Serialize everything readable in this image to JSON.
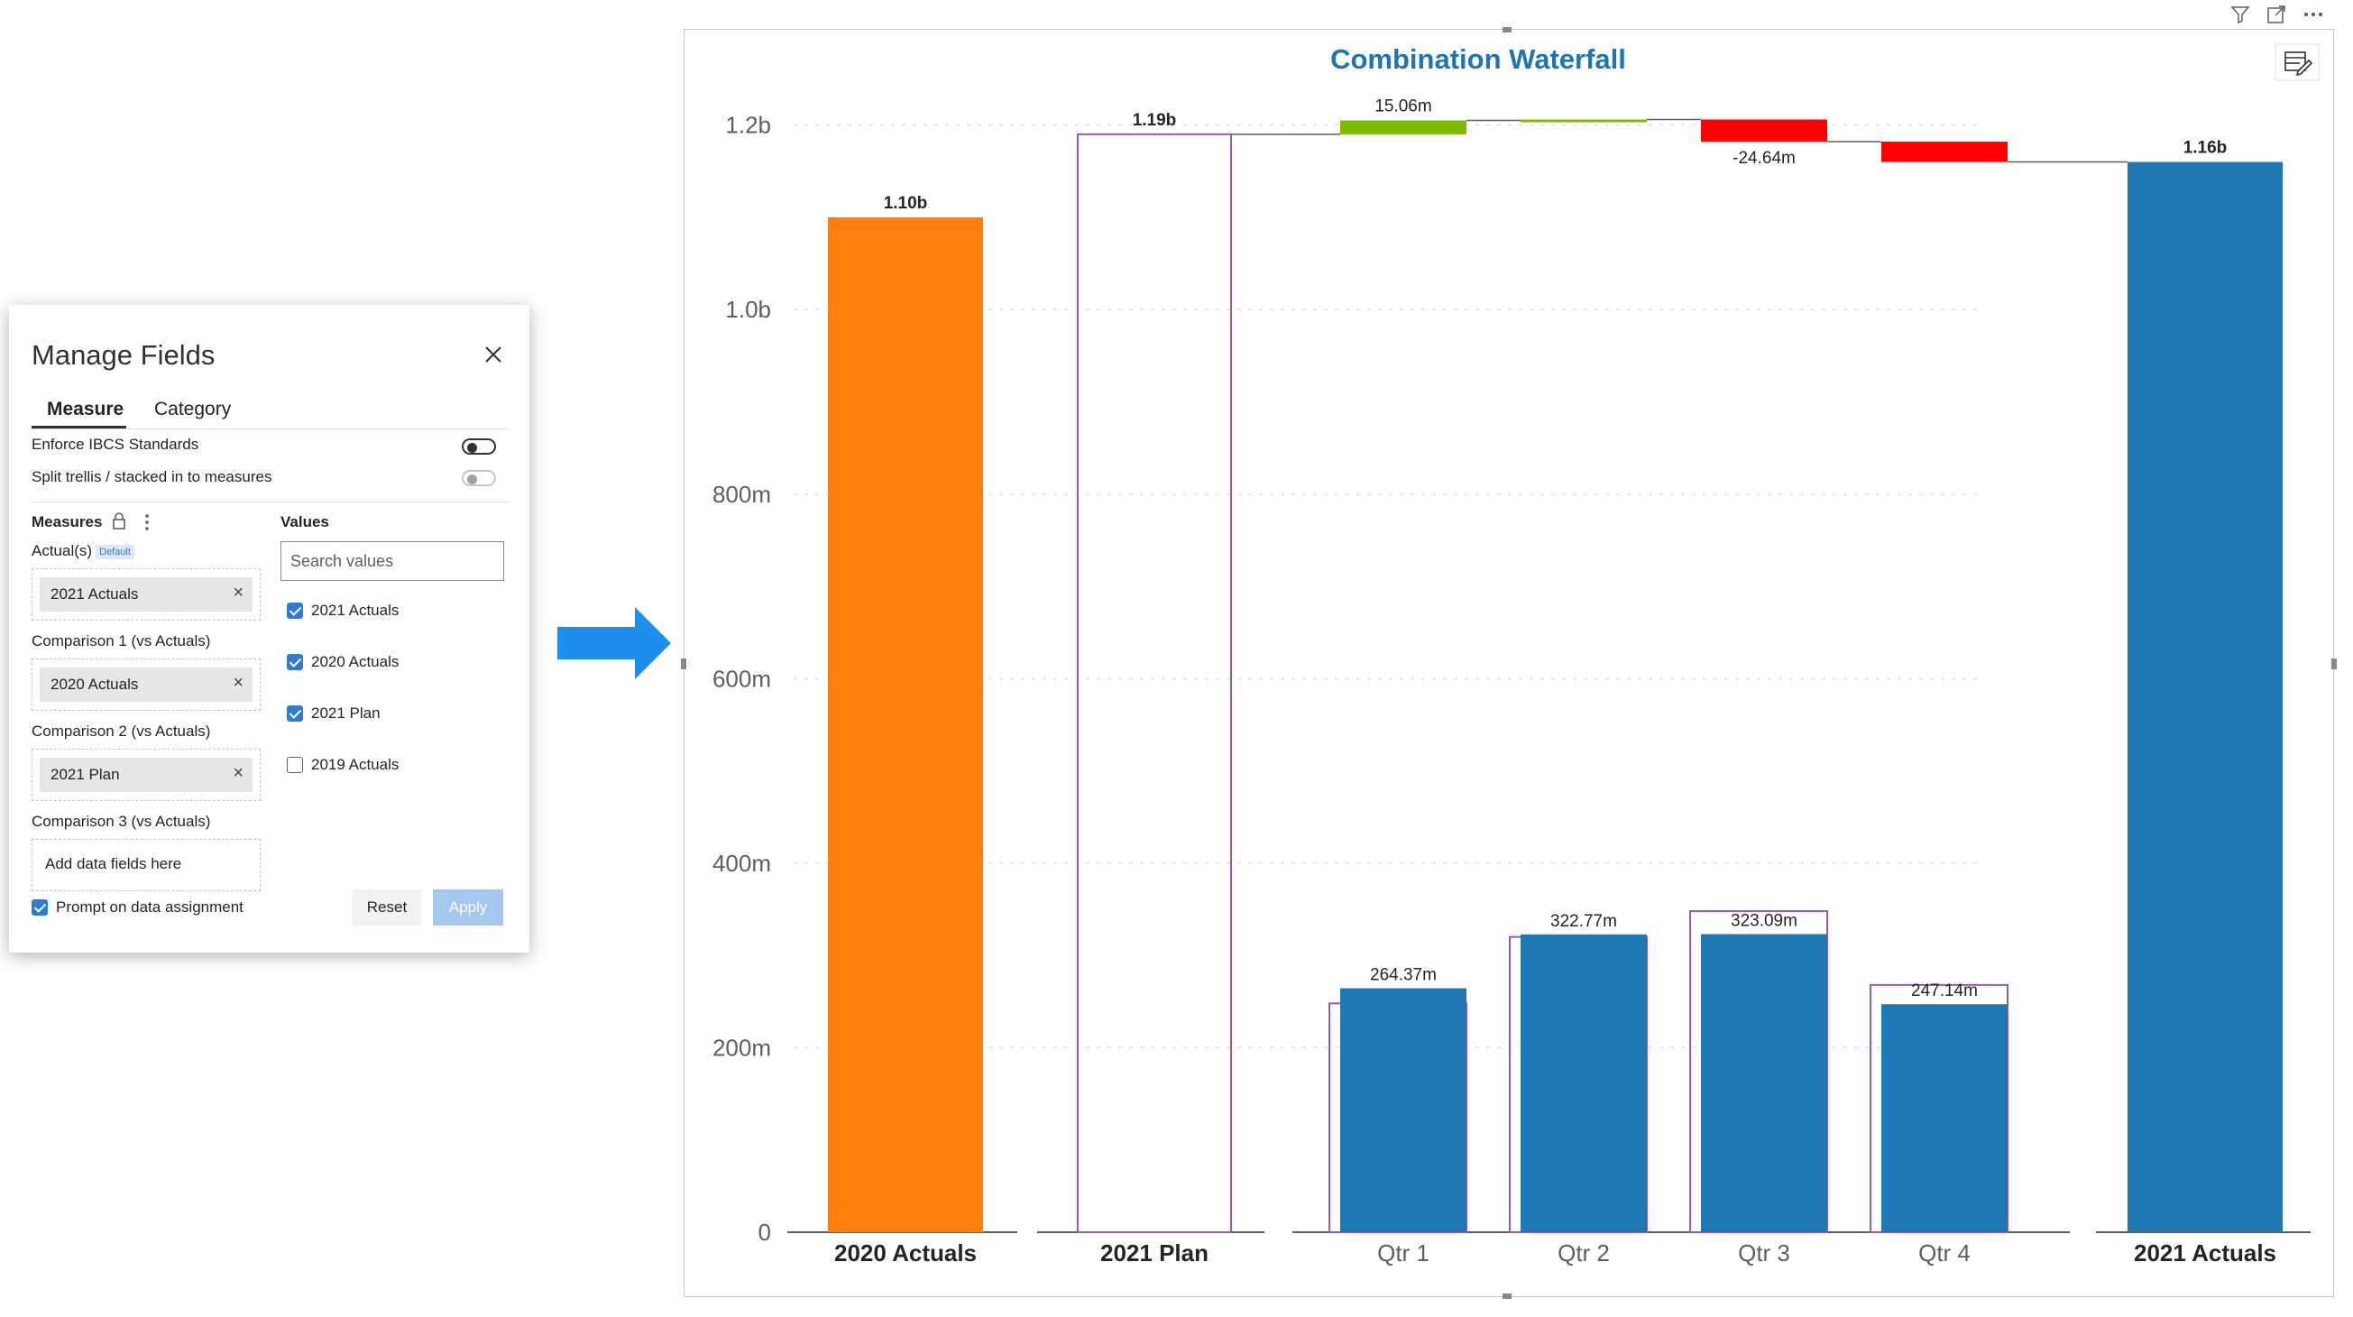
{
  "panel": {
    "title": "Manage Fields",
    "tabs": [
      {
        "label": "Measure",
        "active": true
      },
      {
        "label": "Category",
        "active": false
      }
    ],
    "toggles": [
      {
        "label": "Enforce IBCS Standards",
        "state": "off-dark"
      },
      {
        "label": "Split trellis / stacked in to measures",
        "state": "off-disabled"
      }
    ],
    "measures_header": "Measures",
    "values_header": "Values",
    "fields": [
      {
        "label": "Actual(s)",
        "badge": "Default",
        "chip": "2021 Actuals"
      },
      {
        "label": "Comparison 1 (vs Actuals)",
        "chip": "2020 Actuals"
      },
      {
        "label": "Comparison 2 (vs Actuals)",
        "chip": "2021 Plan"
      },
      {
        "label": "Comparison 3 (vs Actuals)",
        "placeholder": "Add data fields here"
      }
    ],
    "search_placeholder": "Search values",
    "values": [
      {
        "label": "2021 Actuals",
        "checked": true
      },
      {
        "label": "2020 Actuals",
        "checked": true
      },
      {
        "label": "2021 Plan",
        "checked": true
      },
      {
        "label": "2019 Actuals",
        "checked": false
      }
    ],
    "prompt_label": "Prompt on data assignment",
    "prompt_checked": true,
    "reset_label": "Reset",
    "apply_label": "Apply"
  },
  "colors": {
    "orange": "#ff7f0e",
    "blue": "#1f77b4",
    "green": "#7fba00",
    "red": "#ff0000",
    "plan_outline": "#9b59b6",
    "title_blue": "#1f74b5",
    "arrow_blue": "#1e8fef"
  },
  "chart_data": {
    "type": "bar",
    "title": "Combination Waterfall",
    "y_ticks": [
      "0",
      "200m",
      "400m",
      "600m",
      "800m",
      "1.0b",
      "1.2b"
    ],
    "ylim": [
      0,
      1200
    ],
    "units": "millions",
    "grid": true,
    "categories": [
      "2020 Actuals",
      "2021 Plan",
      "Qtr 1",
      "Qtr 2",
      "Qtr 3",
      "Qtr 4",
      "2021 Actuals"
    ],
    "totals": [
      {
        "category": "2020 Actuals",
        "value": 1100,
        "label": "1.10b",
        "style": "fill-orange"
      },
      {
        "category": "2021 Plan",
        "value": 1190,
        "label": "1.19b",
        "style": "outline"
      },
      {
        "category": "2021 Actuals",
        "value": 1160,
        "label": "1.16b",
        "style": "fill-blue"
      }
    ],
    "quarters": [
      {
        "category": "Qtr 1",
        "actual": 264.37,
        "actual_label": "264.37m",
        "plan": 248
      },
      {
        "category": "Qtr 2",
        "actual": 322.77,
        "actual_label": "322.77m",
        "plan": 320
      },
      {
        "category": "Qtr 3",
        "actual": 323.09,
        "actual_label": "323.09m",
        "plan": 348
      },
      {
        "category": "Qtr 4",
        "actual": 247.14,
        "actual_label": "247.14m",
        "plan": 268
      }
    ],
    "waterfall_steps": [
      {
        "category": "Qtr 1",
        "start": 1190,
        "end": 1205,
        "label": "15.06m",
        "sign": "positive"
      },
      {
        "category": "Qtr 2",
        "start": 1205,
        "end": 1206,
        "label": "",
        "sign": "positive"
      },
      {
        "category": "Qtr 3",
        "start": 1206,
        "end": 1182,
        "label": "-24.64m",
        "sign": "negative"
      },
      {
        "category": "Qtr 4",
        "start": 1182,
        "end": 1160,
        "label": "",
        "sign": "negative"
      }
    ]
  }
}
